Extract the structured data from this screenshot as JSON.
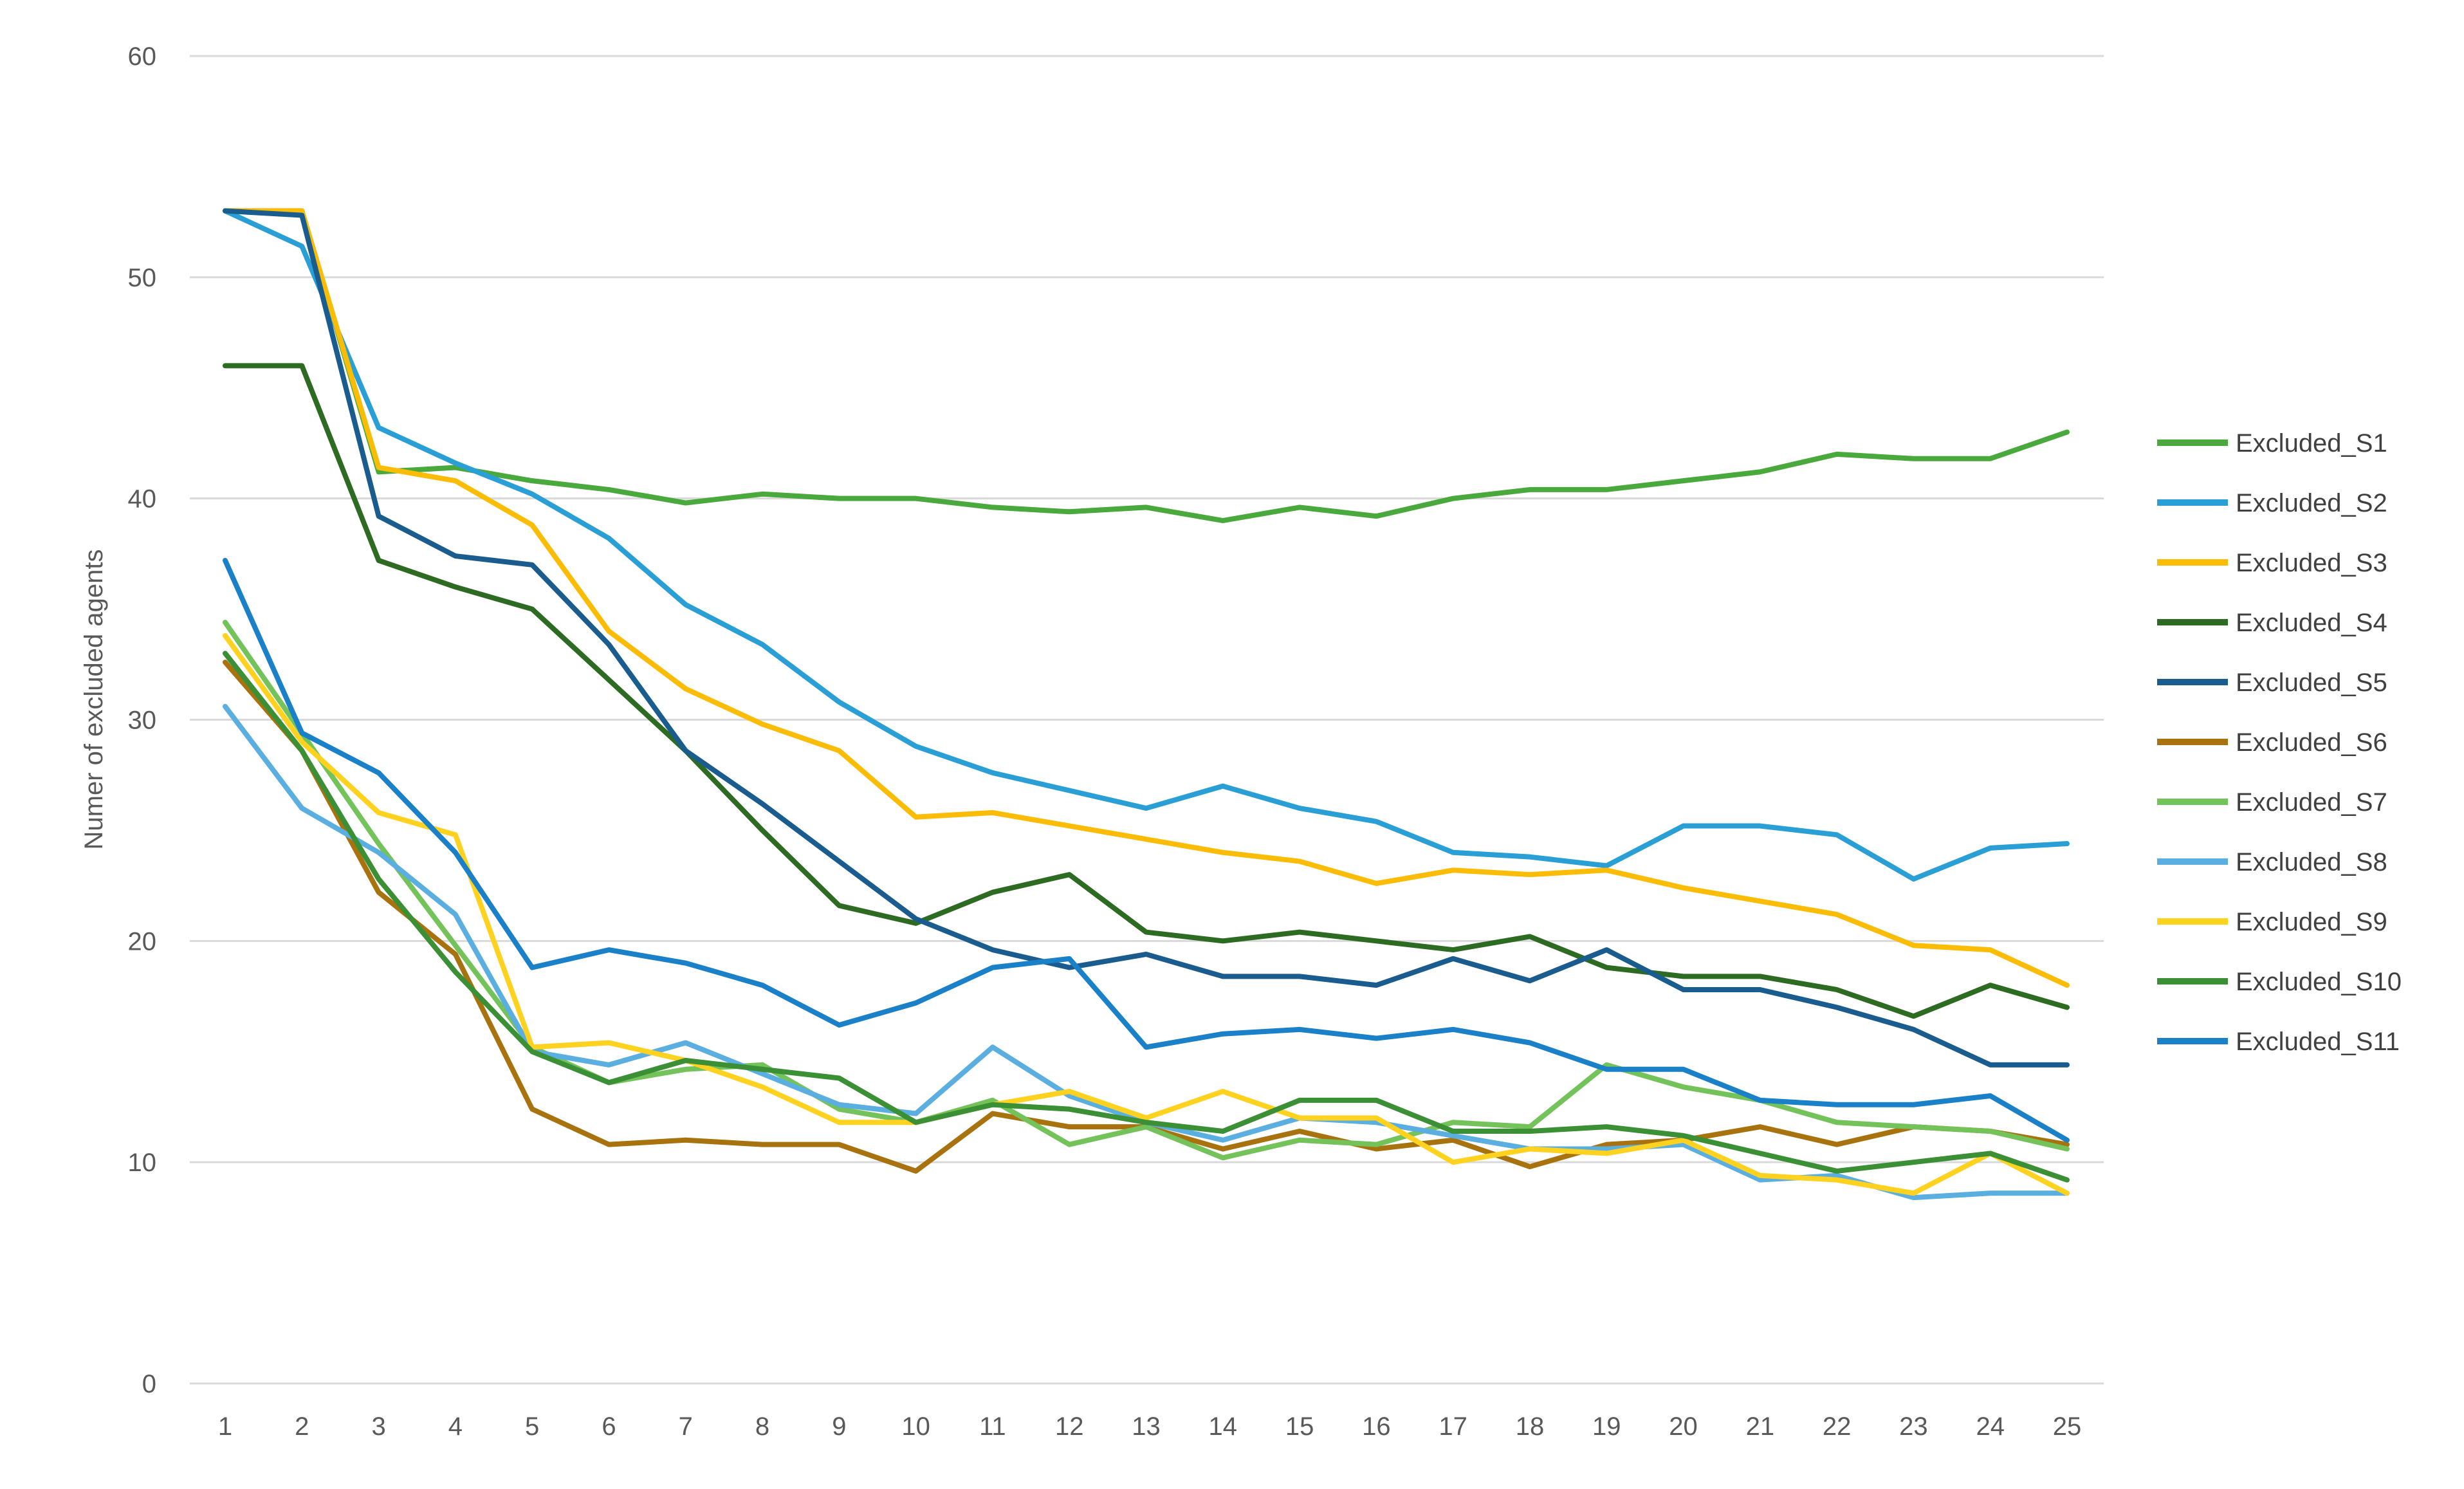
{
  "chart_data": {
    "type": "line",
    "title": "",
    "xlabel": "",
    "ylabel": "Numer of excluded agents",
    "categories": [
      "1",
      "2",
      "3",
      "4",
      "5",
      "6",
      "7",
      "8",
      "9",
      "10",
      "11",
      "12",
      "13",
      "14",
      "15",
      "16",
      "17",
      "18",
      "19",
      "20",
      "21",
      "22",
      "23",
      "24",
      "25"
    ],
    "ylim": [
      0,
      60
    ],
    "yticks": [
      0,
      10,
      20,
      30,
      40,
      50,
      60
    ],
    "grid": true,
    "legend_position": "right",
    "series": [
      {
        "name": "Excluded_S1",
        "color": "#4aa93c",
        "values": [
          53,
          53,
          41.2,
          41.4,
          40.8,
          40.4,
          39.8,
          40.2,
          40,
          40,
          39.6,
          39.4,
          39.6,
          39,
          39.6,
          39.2,
          40,
          40.4,
          40.4,
          40.8,
          41.2,
          42,
          41.8,
          41.8,
          43
        ]
      },
      {
        "name": "Excluded_S2",
        "color": "#2a9fd6",
        "values": [
          53,
          51.4,
          43.2,
          41.6,
          40.2,
          38.2,
          35.2,
          33.4,
          30.8,
          28.8,
          27.6,
          26.8,
          26,
          27,
          26,
          25.4,
          24,
          23.8,
          23.4,
          25.2,
          25.2,
          24.8,
          22.8,
          24.2,
          24.4
        ]
      },
      {
        "name": "Excluded_S3",
        "color": "#fbbc05",
        "values": [
          53,
          53,
          41.4,
          40.8,
          38.8,
          34,
          31.4,
          29.8,
          28.6,
          25.6,
          25.8,
          25.2,
          24.6,
          24,
          23.6,
          22.6,
          23.2,
          23,
          23.2,
          22.4,
          21.8,
          21.2,
          19.8,
          19.6,
          18
        ]
      },
      {
        "name": "Excluded_S4",
        "color": "#2e6b22",
        "values": [
          46,
          46,
          37.2,
          36,
          35,
          31.8,
          28.6,
          25,
          21.6,
          20.8,
          22.2,
          23,
          20.4,
          20,
          20.4,
          20,
          19.6,
          20.2,
          18.8,
          18.4,
          18.4,
          17.8,
          16.6,
          18,
          17
        ]
      },
      {
        "name": "Excluded_S5",
        "color": "#1a5c8e",
        "values": [
          53,
          52.8,
          39.2,
          37.4,
          37,
          33.4,
          28.6,
          26.2,
          23.6,
          21,
          19.6,
          18.8,
          19.4,
          18.4,
          18.4,
          18,
          19.2,
          18.2,
          19.6,
          17.8,
          17.8,
          17,
          16,
          14.4,
          14.4
        ]
      },
      {
        "name": "Excluded_S6",
        "color": "#a8730f",
        "values": [
          32.6,
          28.6,
          22.2,
          19.4,
          12.4,
          10.8,
          11,
          10.8,
          10.8,
          9.6,
          12.2,
          11.6,
          11.6,
          10.6,
          11.4,
          10.6,
          11,
          9.8,
          10.8,
          11,
          11.6,
          10.8,
          11.6,
          11.4,
          10.8
        ]
      },
      {
        "name": "Excluded_S7",
        "color": "#73c25a",
        "values": [
          34.4,
          29.4,
          24.4,
          19.8,
          15.2,
          13.6,
          14.2,
          14.4,
          12.4,
          11.8,
          12.8,
          10.8,
          11.6,
          10.2,
          11,
          10.8,
          11.8,
          11.6,
          14.4,
          13.4,
          12.8,
          11.8,
          11.6,
          11.4,
          10.6
        ]
      },
      {
        "name": "Excluded_S8",
        "color": "#5aaee0",
        "values": [
          30.6,
          26,
          24,
          21.2,
          15,
          14.4,
          15.4,
          14,
          12.6,
          12.2,
          15.2,
          13,
          11.8,
          11,
          12,
          11.8,
          11.2,
          10.6,
          10.6,
          10.8,
          9.2,
          9.4,
          8.4,
          8.6,
          8.6
        ]
      },
      {
        "name": "Excluded_S9",
        "color": "#ffd21f",
        "values": [
          33.8,
          29,
          25.8,
          24.8,
          15.2,
          15.4,
          14.6,
          13.4,
          11.8,
          11.8,
          12.6,
          13.2,
          12,
          13.2,
          12,
          12,
          10,
          10.6,
          10.4,
          11,
          9.4,
          9.2,
          8.6,
          10.4,
          8.6
        ]
      },
      {
        "name": "Excluded_S10",
        "color": "#3b8f34",
        "values": [
          33,
          28.6,
          22.8,
          18.6,
          15,
          13.6,
          14.6,
          14.2,
          13.8,
          11.8,
          12.6,
          12.4,
          11.8,
          11.4,
          12.8,
          12.8,
          11.4,
          11.4,
          11.6,
          11.2,
          10.4,
          9.6,
          10,
          10.4,
          9.2
        ]
      },
      {
        "name": "Excluded_S11",
        "color": "#1a81c9",
        "values": [
          37.2,
          29.4,
          27.6,
          24,
          18.8,
          19.6,
          19,
          18,
          16.2,
          17.2,
          18.8,
          19.2,
          15.2,
          15.8,
          16,
          15.6,
          16,
          15.4,
          14.2,
          14.2,
          12.8,
          12.6,
          12.6,
          13,
          11
        ]
      }
    ]
  }
}
